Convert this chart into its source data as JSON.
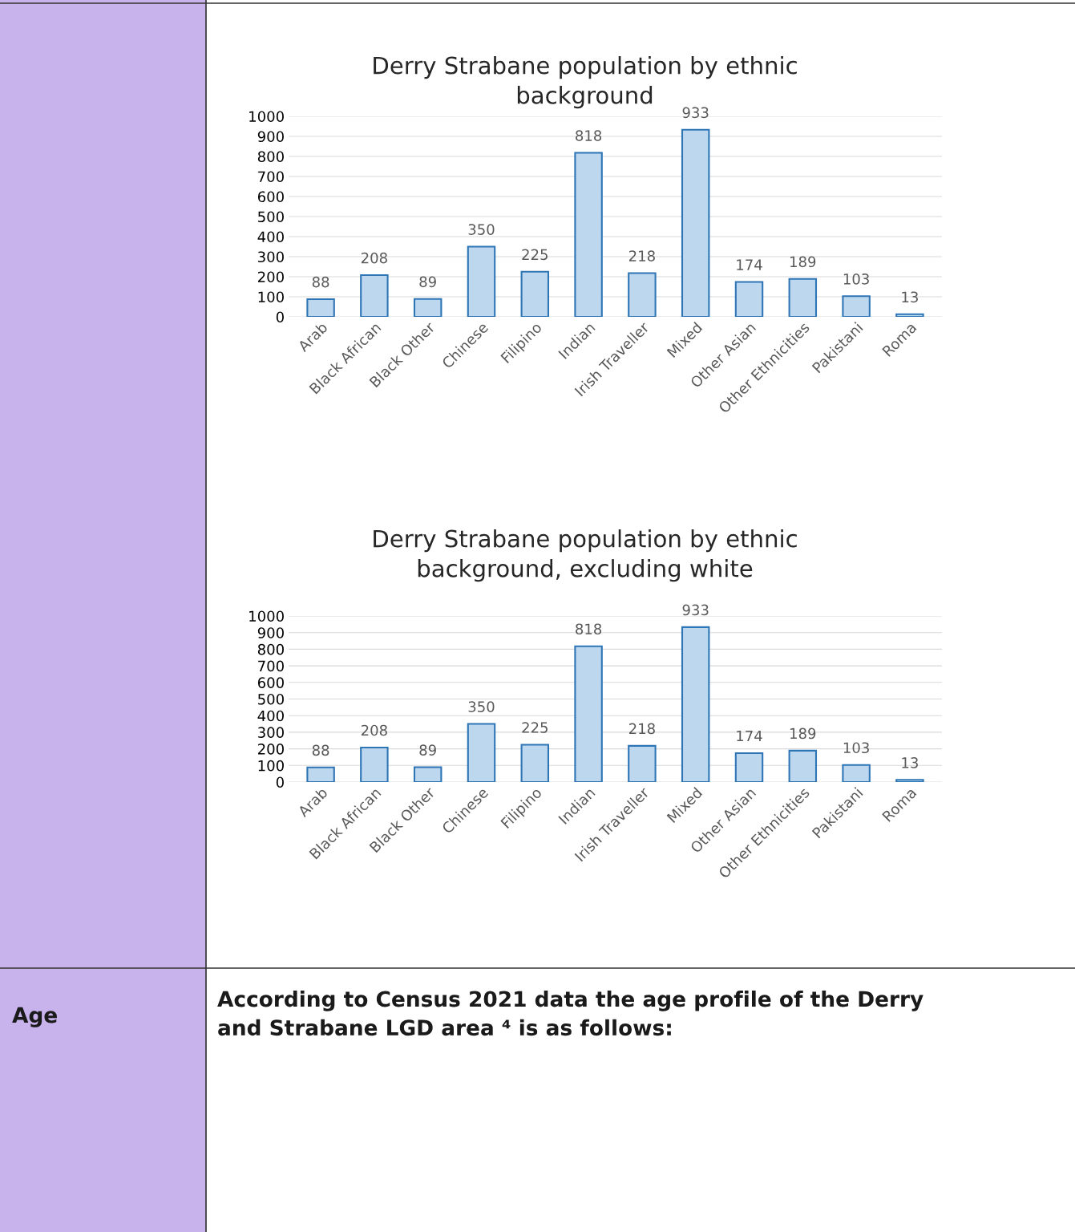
{
  "chart_data": [
    {
      "type": "bar",
      "title": "Derry Strabane population by ethnic background",
      "categories": [
        "Arab",
        "Black African",
        "Black Other",
        "Chinese",
        "Filipino",
        "Indian",
        "Irish Traveller",
        "Mixed",
        "Other Asian",
        "Other Ethnicities",
        "Pakistani",
        "Roma"
      ],
      "values": [
        88,
        208,
        89,
        350,
        225,
        818,
        218,
        933,
        174,
        189,
        103,
        13
      ],
      "color": "#bdd7ee",
      "ylim": [
        0,
        1000
      ],
      "yticks": [
        0,
        100,
        200,
        300,
        400,
        500,
        600,
        700,
        800,
        900,
        1000
      ],
      "grid": "y",
      "data_labels": true
    },
    {
      "type": "bar",
      "title": "Derry Strabane population by ethnic background, excluding white",
      "categories": [
        "Arab",
        "Black African",
        "Black Other",
        "Chinese",
        "Filipino",
        "Indian",
        "Irish Traveller",
        "Mixed",
        "Other Asian",
        "Other Ethnicities",
        "Pakistani",
        "Roma"
      ],
      "values": [
        88,
        208,
        89,
        350,
        225,
        818,
        218,
        933,
        174,
        189,
        103,
        13
      ],
      "color": "#bdd7ee",
      "ylim": [
        0,
        1000
      ],
      "yticks": [
        0,
        100,
        200,
        300,
        400,
        500,
        600,
        700,
        800,
        900,
        1000
      ],
      "grid": "y",
      "data_labels": true
    },
    {
      "type": "other",
      "annotations": [
        "Age",
        "According to Census 2021 data the age profile of the Derry and Strabane LGD area ⁴ is as follows:"
      ]
    }
  ]
}
